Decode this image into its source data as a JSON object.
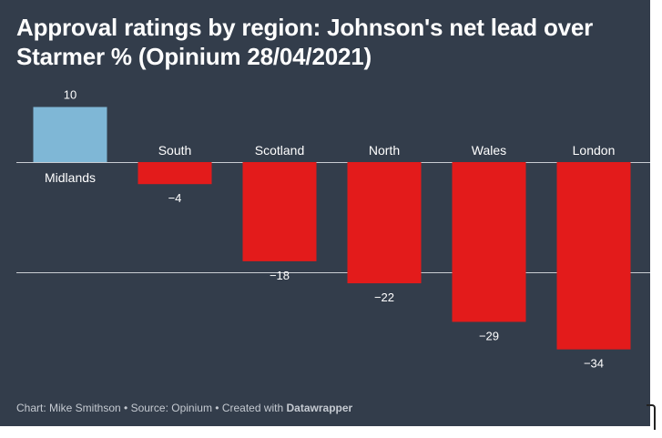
{
  "chart_data": {
    "type": "bar",
    "title": "Approval ratings by region: Johnson's net lead over Starmer % (Opinium 28/04/2021)",
    "categories": [
      "Midlands",
      "South",
      "Scotland",
      "North",
      "Wales",
      "London"
    ],
    "values": [
      10,
      -4,
      -18,
      -22,
      -29,
      -34
    ],
    "value_labels": [
      "10",
      "−4",
      "−18",
      "−22",
      "−29",
      "−34"
    ],
    "gridlines": [
      0,
      -20
    ],
    "ylim": [
      -40,
      10
    ],
    "xlabel": "",
    "ylabel": "",
    "colors": {
      "positive": "#7fb7d6",
      "negative": "#e31b1b",
      "background": "#333d4b",
      "grid": "#c8ccd2",
      "text": "#ffffff"
    }
  },
  "footer": {
    "prefix": "Chart: Mike Smithson • Source: Opinium • Created with ",
    "brand": "Datawrapper"
  }
}
